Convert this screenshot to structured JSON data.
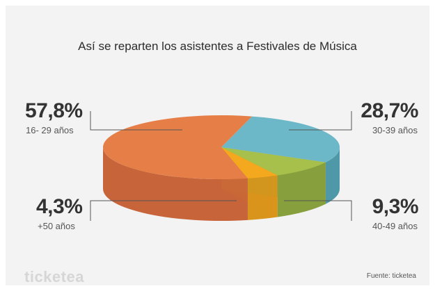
{
  "chart_data": {
    "type": "pie",
    "title": "Así se reparten los asistentes a Festivales de Música",
    "slices": [
      {
        "label": "16- 29 años",
        "value": 57.8,
        "value_label": "57,8%",
        "color": "#e67f47",
        "side_color": "#c7643a"
      },
      {
        "label": "30-39 años",
        "value": 28.7,
        "value_label": "28,7%",
        "color": "#6cb7c8",
        "side_color": "#4e98a8"
      },
      {
        "label": "40-49 años",
        "value": 9.3,
        "value_label": "9,3%",
        "color": "#a6c04b",
        "side_color": "#879f3c"
      },
      {
        "label": "+50 años",
        "value": 4.3,
        "value_label": "4,3%",
        "color": "#f3a81d",
        "side_color": "#d9941c"
      }
    ]
  },
  "footer": {
    "logo": "ticketea",
    "source": "Fuente: ticketea"
  }
}
